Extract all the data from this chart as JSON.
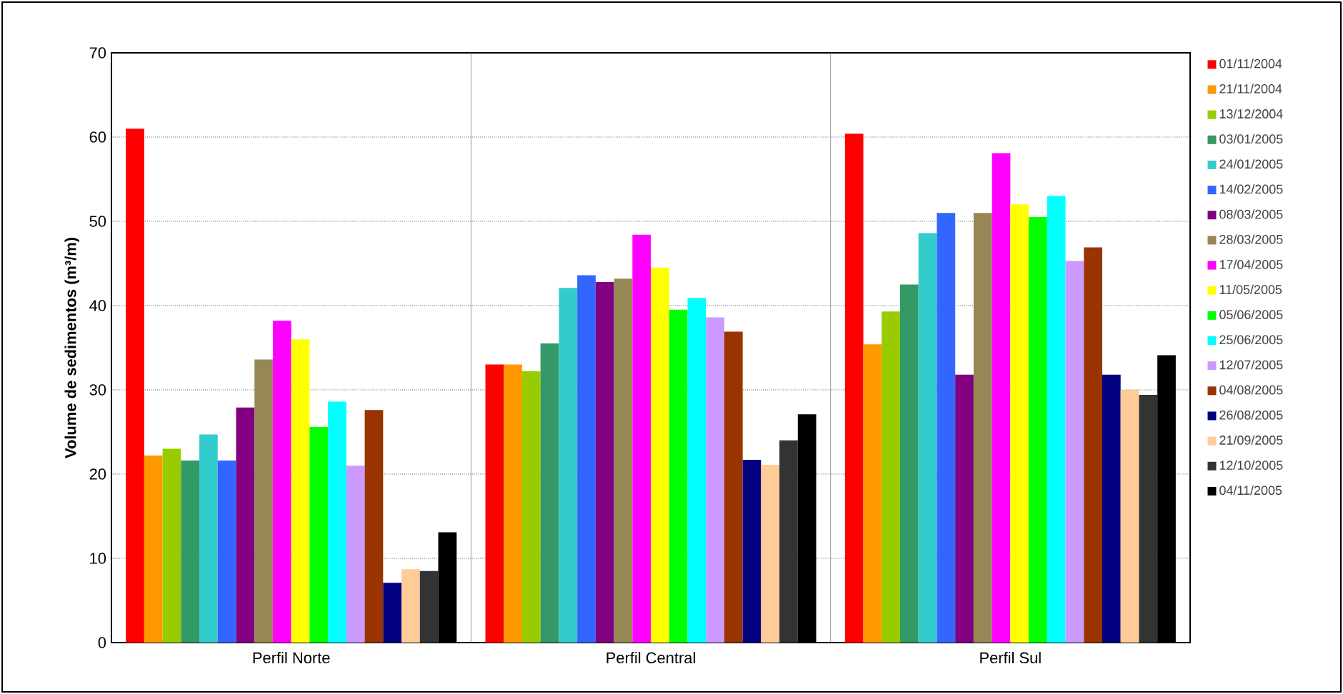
{
  "chart_data": {
    "type": "bar",
    "ylabel": "Volume de sedimentos (m³/m)",
    "categories": [
      "Perfil Norte",
      "Perfil Central",
      "Perfil Sul"
    ],
    "ylim": [
      0,
      70
    ],
    "yticks": [
      0,
      10,
      20,
      30,
      40,
      50,
      60,
      70
    ],
    "grid": "y",
    "legend": "right",
    "series": [
      {
        "name": "01/11/2004",
        "color": "#ff0000",
        "values": [
          61,
          33,
          60.4
        ]
      },
      {
        "name": "21/11/2004",
        "color": "#ff9900",
        "values": [
          22.2,
          33,
          35.4
        ]
      },
      {
        "name": "13/12/2004",
        "color": "#99cc00",
        "values": [
          23,
          32.2,
          39.3
        ]
      },
      {
        "name": "03/01/2005",
        "color": "#339966",
        "values": [
          21.6,
          35.5,
          42.5
        ]
      },
      {
        "name": "24/01/2005",
        "color": "#33cccc",
        "values": [
          24.7,
          42.1,
          48.6
        ]
      },
      {
        "name": "14/02/2005",
        "color": "#3366ff",
        "values": [
          21.6,
          43.6,
          51
        ]
      },
      {
        "name": "08/03/2005",
        "color": "#800080",
        "values": [
          27.9,
          42.8,
          31.8
        ]
      },
      {
        "name": "28/03/2005",
        "color": "#968855",
        "values": [
          33.6,
          43.2,
          51
        ]
      },
      {
        "name": "17/04/2005",
        "color": "#ff00ff",
        "values": [
          38.2,
          48.4,
          58.1
        ]
      },
      {
        "name": "11/05/2005",
        "color": "#ffff00",
        "values": [
          36,
          44.5,
          52
        ]
      },
      {
        "name": "05/06/2005",
        "color": "#00ff00",
        "values": [
          25.6,
          39.5,
          50.5
        ]
      },
      {
        "name": "25/06/2005",
        "color": "#00ffff",
        "values": [
          28.6,
          40.9,
          53
        ]
      },
      {
        "name": "12/07/2005",
        "color": "#cc99ff",
        "values": [
          21,
          38.6,
          45.3
        ]
      },
      {
        "name": "04/08/2005",
        "color": "#993300",
        "values": [
          27.6,
          36.9,
          46.9
        ]
      },
      {
        "name": "26/08/2005",
        "color": "#000080",
        "values": [
          7.1,
          21.7,
          31.8
        ]
      },
      {
        "name": "21/09/2005",
        "color": "#ffcc99",
        "values": [
          8.7,
          21.1,
          30
        ]
      },
      {
        "name": "12/10/2005",
        "color": "#333333",
        "values": [
          8.5,
          24,
          29.4
        ]
      },
      {
        "name": "04/11/2005",
        "color": "#000000",
        "values": [
          13.1,
          27.1,
          34.1
        ]
      }
    ]
  }
}
